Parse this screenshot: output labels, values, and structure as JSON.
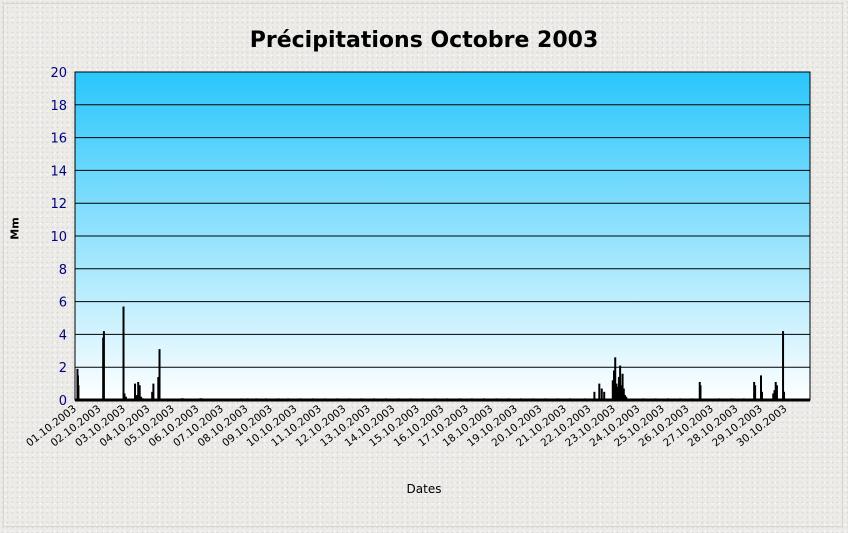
{
  "chart_data": {
    "type": "bar",
    "title": "Précipitations Octobre 2003",
    "xlabel": "Dates",
    "ylabel": "Mm",
    "ylim": [
      0,
      20
    ],
    "yticks": [
      0,
      2,
      4,
      6,
      8,
      10,
      12,
      14,
      16,
      18,
      20
    ],
    "grid": true,
    "legend": "none",
    "bar_color": "#000000",
    "background_top_color": "#29c6fb",
    "background_bottom_color": "#ffffff",
    "categories": [
      "01.10.2003",
      "02.10.2003",
      "03.10.2003",
      "04.10.2003",
      "05.10.2003",
      "06.10.2003",
      "07.10.2003",
      "08.10.2003",
      "09.10.2003",
      "10.10.2003",
      "11.10.2003",
      "12.10.2003",
      "13.10.2003",
      "14.10.2003",
      "15.10.2003",
      "16.10.2003",
      "17.10.2003",
      "18.10.2003",
      "19.10.2003",
      "20.10.2003",
      "21.10.2003",
      "22.10.2003",
      "23.10.2003",
      "24.10.2003",
      "25.10.2003",
      "26.10.2003",
      "27.10.2003",
      "28.10.2003",
      "29.10.2003",
      "30.10.2003"
    ],
    "x": [
      0.1,
      0.12,
      0.14,
      1.15,
      1.18,
      1.98,
      2.02,
      2.08,
      2.45,
      2.52,
      2.58,
      2.64,
      2.7,
      2.78,
      3.15,
      3.2,
      3.4,
      3.45,
      4.35,
      4.38,
      4.42,
      5.1,
      5.14,
      5.18,
      6.8,
      7.05,
      7.4,
      7.8,
      8.3,
      8.7,
      9.2,
      9.7,
      10.2,
      10.7,
      11.2,
      11.7,
      12.2,
      12.7,
      13.2,
      13.7,
      14.2,
      14.7,
      15.2,
      15.7,
      16.2,
      16.7,
      17.2,
      17.7,
      18.2,
      18.7,
      19.2,
      19.7,
      20.2,
      20.8,
      21.2,
      21.4,
      21.5,
      21.6,
      21.95,
      22.0,
      22.05,
      22.1,
      22.15,
      22.2,
      22.25,
      22.3,
      22.35,
      22.4,
      22.45,
      22.5,
      23.2,
      23.7,
      24.2,
      24.7,
      25.2,
      25.5,
      25.53,
      26.3,
      26.8,
      27.3,
      27.72,
      27.76,
      28.0,
      28.04,
      28.5,
      28.55,
      28.6,
      28.65,
      28.9,
      28.94
    ],
    "values": [
      1.9,
      1.5,
      0.9,
      3.8,
      4.2,
      5.7,
      0.4,
      0.2,
      1.0,
      0.3,
      1.1,
      0.9,
      0.2,
      0.1,
      0.5,
      1.0,
      1.4,
      3.1,
      0.1,
      0.1,
      0.1,
      0.1,
      0.1,
      0.1,
      0.1,
      0.1,
      0.1,
      0.1,
      0.1,
      0.1,
      0.1,
      0.1,
      0.1,
      0.1,
      0.1,
      0.1,
      0.1,
      0.1,
      0.1,
      0.1,
      0.1,
      0.1,
      0.1,
      0.1,
      0.1,
      0.1,
      0.1,
      0.1,
      0.1,
      0.1,
      0.1,
      0.1,
      0.1,
      0.1,
      0.5,
      1.0,
      0.7,
      0.5,
      1.2,
      1.8,
      2.6,
      1.0,
      0.8,
      1.4,
      2.1,
      0.9,
      1.6,
      0.7,
      0.3,
      0.2,
      0.1,
      0.1,
      0.1,
      0.1,
      0.1,
      1.1,
      0.9,
      0.1,
      0.1,
      0.1,
      1.1,
      0.9,
      1.5,
      0.5,
      0.4,
      0.6,
      1.1,
      0.9,
      4.2,
      0.5
    ]
  }
}
